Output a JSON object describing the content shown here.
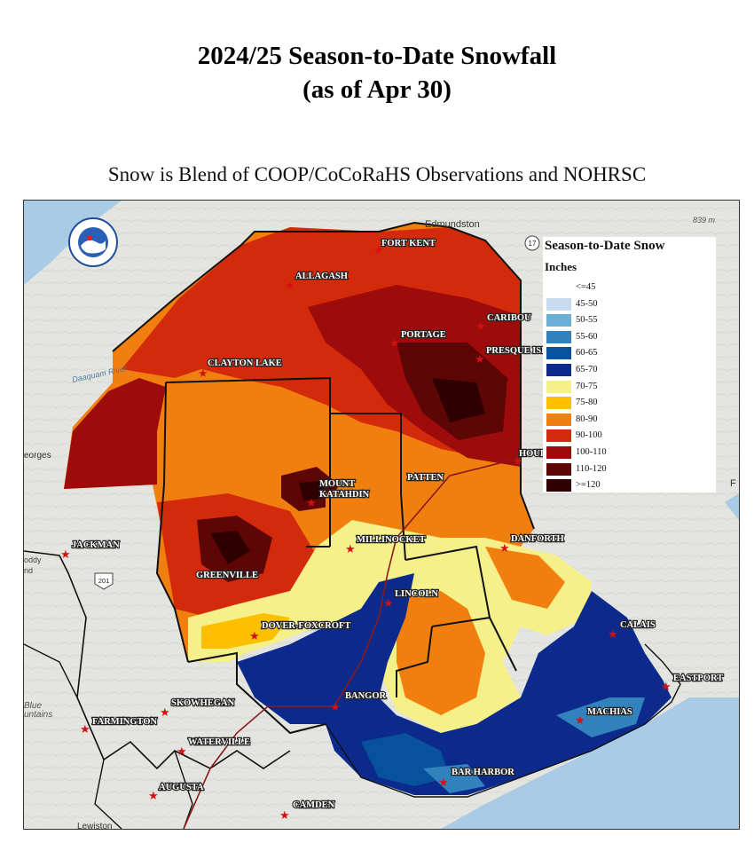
{
  "title": {
    "line1": "2024/25 Season-to-Date Snowfall",
    "line2": "(as of Apr 30)"
  },
  "subtitle": "Snow is Blend of COOP/CoCoRaHS Observations and NOHRSC",
  "legend": {
    "title": "Season-to-Date Snow",
    "units": "Inches",
    "items": [
      {
        "label": "<=45",
        "color": "#ffffff"
      },
      {
        "label": "45-50",
        "color": "#c6dbef"
      },
      {
        "label": "50-55",
        "color": "#6baed6"
      },
      {
        "label": "55-60",
        "color": "#3182bd"
      },
      {
        "label": "60-65",
        "color": "#08519c"
      },
      {
        "label": "65-70",
        "color": "#0b2a8c"
      },
      {
        "label": "70-75",
        "color": "#f6f08a"
      },
      {
        "label": "75-80",
        "color": "#fcc000"
      },
      {
        "label": "80-90",
        "color": "#f07f10"
      },
      {
        "label": "90-100",
        "color": "#d42a0c"
      },
      {
        "label": "100-110",
        "color": "#9e0b0b"
      },
      {
        "label": "110-120",
        "color": "#5e0505"
      },
      {
        "label": ">=120",
        "color": "#2e0000"
      }
    ]
  },
  "basemap": {
    "labels": {
      "edmundston": "Edmundston",
      "elevation": "839 m",
      "daaquam": "Daaquam River",
      "georges": "eorges",
      "roddy": "oddy",
      "nd": "nd",
      "blue": "Blue",
      "mountains": "untains",
      "lewiston": "Lewiston",
      "route17": "17",
      "route201": "201",
      "right_edge": "F"
    }
  },
  "cities": [
    {
      "name": "FORT KENT"
    },
    {
      "name": "ALLAGASH"
    },
    {
      "name": "CARIBOU"
    },
    {
      "name": "PORTAGE"
    },
    {
      "name": "PRESQUE ISLE"
    },
    {
      "name": "CLAYTON LAKE"
    },
    {
      "name": "HOULTON"
    },
    {
      "name": "MOUNT"
    },
    {
      "name": "KATAHDIN"
    },
    {
      "name": "PATTEN"
    },
    {
      "name": "JACKMAN"
    },
    {
      "name": "MILLINOCKET"
    },
    {
      "name": "DANFORTH"
    },
    {
      "name": "GREENVILLE"
    },
    {
      "name": "LINCOLN"
    },
    {
      "name": "DOVER-FOXCROFT"
    },
    {
      "name": "CALAIS"
    },
    {
      "name": "EASTPORT"
    },
    {
      "name": "BANGOR"
    },
    {
      "name": "SKOWHEGAN"
    },
    {
      "name": "FARMINGTON"
    },
    {
      "name": "MACHIAS"
    },
    {
      "name": "WATERVILLE"
    },
    {
      "name": "BAR HARBOR"
    },
    {
      "name": "AUGUSTA"
    },
    {
      "name": "CAMDEN"
    }
  ],
  "colors": {
    "water": "#a9cbe6",
    "land": "#e4e5e0",
    "star": "#d41111",
    "boundary": "#111111"
  }
}
